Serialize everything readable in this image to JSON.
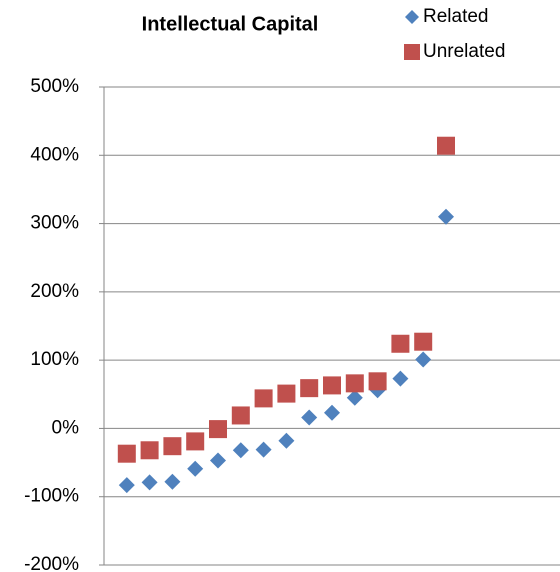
{
  "chart_data": {
    "type": "scatter",
    "title": "Intellectual Capital",
    "x": [
      1,
      2,
      3,
      4,
      5,
      6,
      7,
      8,
      9,
      10,
      11,
      12,
      13,
      14,
      15
    ],
    "xlim": [
      0,
      20
    ],
    "series": [
      {
        "name": "Related",
        "color": "#4f81bd",
        "marker": "diamond",
        "values": [
          -83,
          -79,
          -78,
          -59,
          -47,
          -32,
          -31,
          -18,
          16,
          23,
          45,
          56,
          73,
          101,
          310
        ]
      },
      {
        "name": "Unrelated",
        "color": "#c0504d",
        "marker": "square",
        "values": [
          -37,
          -32,
          -26,
          -19,
          -1,
          19,
          44,
          51,
          59,
          63,
          66,
          69,
          124,
          127,
          414
        ]
      }
    ],
    "ylim": [
      -200,
      500
    ],
    "yticks": [
      {
        "value": -200,
        "label": "-200%"
      },
      {
        "value": -100,
        "label": "-100%"
      },
      {
        "value": 0,
        "label": "0%"
      },
      {
        "value": 100,
        "label": "100%"
      },
      {
        "value": 200,
        "label": "200%"
      },
      {
        "value": 300,
        "label": "300%"
      },
      {
        "value": 400,
        "label": "400%"
      },
      {
        "value": 500,
        "label": "500%"
      }
    ],
    "grid": true,
    "legend": "top-right"
  }
}
